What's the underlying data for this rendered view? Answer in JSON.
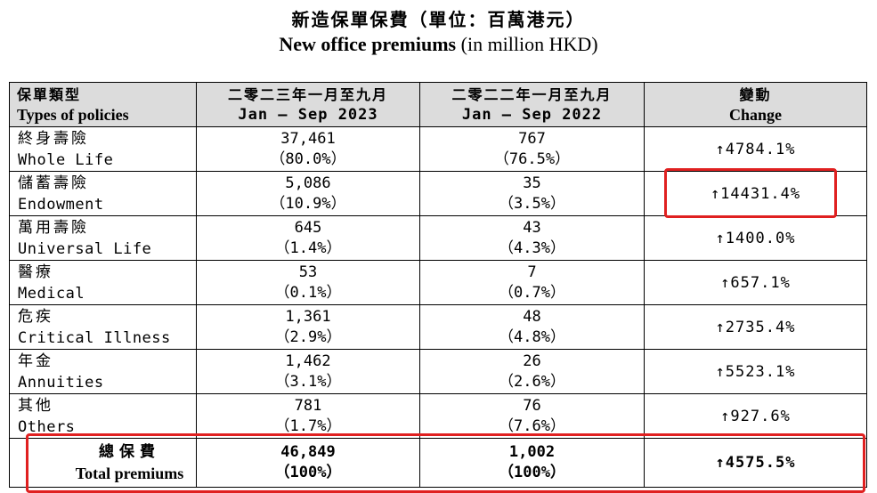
{
  "title": {
    "zh": "新造保單保費（單位：百萬港元）",
    "en_bold": "New office premiums",
    "en_rest": " (in million HKD)"
  },
  "headers": [
    {
      "zh": "保單類型",
      "en": "Types of policies"
    },
    {
      "zh": "二零二三年一月至九月",
      "en": "Jan – Sep 2023"
    },
    {
      "zh": "二零二二年一月至九月",
      "en": "Jan – Sep 2022"
    },
    {
      "zh": "變動",
      "en": "Change"
    }
  ],
  "rows": [
    {
      "zh": "終身壽險",
      "en": "Whole Life",
      "v2023": "37,461",
      "p2023": "（80.0%）",
      "v2022": "767",
      "p2022": "（76.5%）",
      "change": "↑4784.1%"
    },
    {
      "zh": "儲蓄壽險",
      "en": "Endowment",
      "v2023": "5,086",
      "p2023": "（10.9%）",
      "v2022": "35",
      "p2022": "（3.5%）",
      "change": "↑14431.4%"
    },
    {
      "zh": "萬用壽險",
      "en": "Universal Life",
      "v2023": "645",
      "p2023": "（1.4%）",
      "v2022": "43",
      "p2022": "（4.3%）",
      "change": "↑1400.0%"
    },
    {
      "zh": "醫療",
      "en": "Medical",
      "v2023": "53",
      "p2023": "（0.1%）",
      "v2022": "7",
      "p2022": "（0.7%）",
      "change": "↑657.1%"
    },
    {
      "zh": "危疾",
      "en": "Critical Illness",
      "v2023": "1,361",
      "p2023": "（2.9%）",
      "v2022": "48",
      "p2022": "（4.8%）",
      "change": "↑2735.4%"
    },
    {
      "zh": "年金",
      "en": "Annuities",
      "v2023": "1,462",
      "p2023": "（3.1%）",
      "v2022": "26",
      "p2022": "（2.6%）",
      "change": "↑5523.1%"
    },
    {
      "zh": "其他",
      "en": "Others",
      "v2023": "781",
      "p2023": "（1.7%）",
      "v2022": "76",
      "p2022": "（7.6%）",
      "change": "↑927.6%"
    }
  ],
  "total": {
    "zh": "總保費",
    "en": "Total premiums",
    "v2023": "46,849",
    "p2023": "（100%）",
    "v2022": "1,002",
    "p2022": "（100%）",
    "change": "↑4575.5%"
  },
  "colors": {
    "highlight": "#e02020",
    "header_bg": "#dcdcdc"
  }
}
